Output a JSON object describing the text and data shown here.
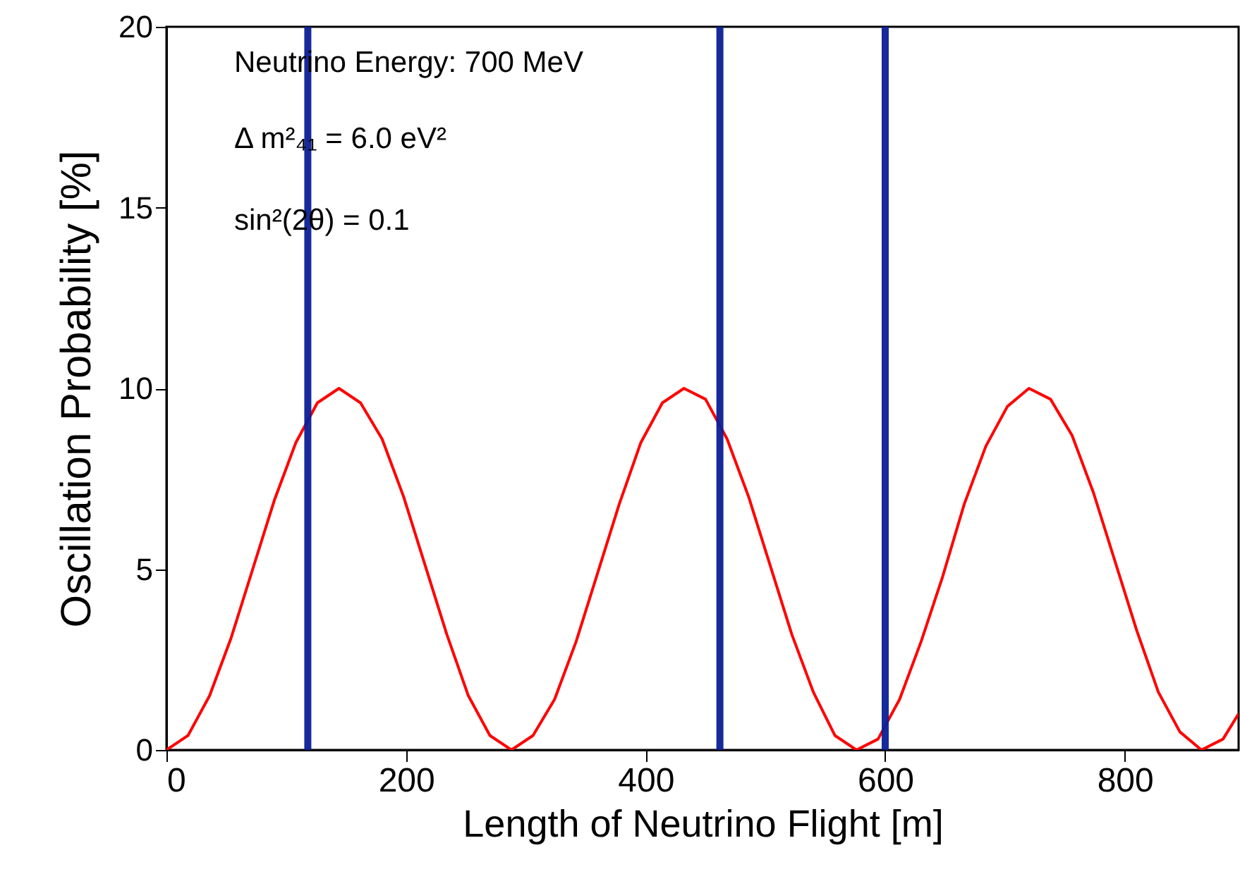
{
  "chart_data": {
    "type": "line",
    "xlabel": "Length of Neutrino Flight [m]",
    "ylabel": "Oscillation Probability [%]",
    "annotations": [
      "Neutrino Energy:  700 MeV",
      "Δ m²₄₁ = 6.0 eV²",
      "sin²(2θ) = 0.1"
    ],
    "x": [
      0,
      18,
      36,
      54,
      72,
      90,
      108,
      126,
      144,
      162,
      180,
      198,
      216,
      234,
      252,
      270,
      288,
      306,
      324,
      342,
      360,
      378,
      396,
      414,
      432,
      450,
      468,
      486,
      504,
      522,
      540,
      558,
      576,
      594,
      612,
      630,
      648,
      666,
      684,
      702,
      720,
      738,
      756,
      774,
      792,
      810,
      828,
      846,
      864,
      882,
      895
    ],
    "series": [
      {
        "color": "#ff0000",
        "values": [
          0,
          0.4,
          1.5,
          3.1,
          5.0,
          6.9,
          8.5,
          9.6,
          10.0,
          9.6,
          8.6,
          7.0,
          5.1,
          3.2,
          1.5,
          0.4,
          0,
          0.4,
          1.4,
          3.0,
          4.9,
          6.8,
          8.5,
          9.6,
          10.0,
          9.7,
          8.6,
          7.0,
          5.1,
          3.2,
          1.6,
          0.4,
          0,
          0.3,
          1.4,
          3.0,
          4.8,
          6.8,
          8.4,
          9.5,
          10.0,
          9.7,
          8.7,
          7.1,
          5.2,
          3.3,
          1.6,
          0.5,
          0,
          0.3,
          1.0
        ]
      }
    ],
    "ref_lines": [
      {
        "axis": "x",
        "value": 118,
        "color": "#0b1f96"
      },
      {
        "axis": "x",
        "value": 462,
        "color": "#0b1f96"
      },
      {
        "axis": "x",
        "value": 600,
        "color": "#0b1f96"
      }
    ],
    "xlim": [
      0,
      895
    ],
    "xticks": [
      0,
      200,
      400,
      600,
      800
    ],
    "ylim": [
      0,
      20
    ],
    "yticks": [
      0,
      5,
      10,
      15,
      20
    ],
    "grid": false,
    "marker": "none",
    "line_style": "solid"
  }
}
